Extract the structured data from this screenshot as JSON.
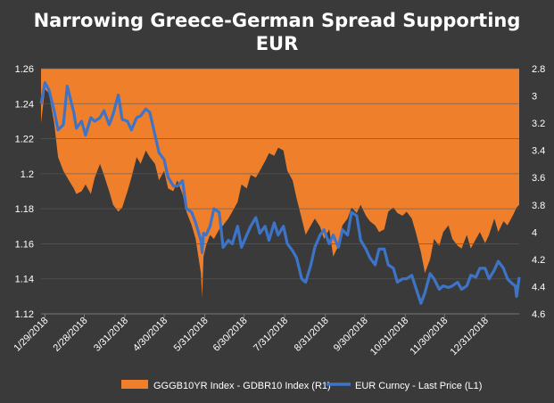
{
  "chart_data": {
    "type": "area+line",
    "title_line_1": "Narrowing Greece-German Spread Supporting",
    "title_line_2": "EUR",
    "left_axis": {
      "ticks": [
        "1.12",
        "1.14",
        "1.16",
        "1.18",
        "1.2",
        "1.22",
        "1.24",
        "1.26"
      ],
      "ylim": [
        1.12,
        1.26
      ]
    },
    "right_axis": {
      "ticks": [
        "2.8",
        "3",
        "3.2",
        "3.4",
        "3.6",
        "3.8",
        "4",
        "4.2",
        "4.4",
        "4.6"
      ],
      "ylim": [
        2.8,
        4.6
      ],
      "inverted": true
    },
    "x_ticks": [
      "1/29/2018",
      "2/28/2018",
      "3/31/2018",
      "4/30/2018",
      "5/31/2018",
      "6/30/2018",
      "7/31/2018",
      "8/31/2018",
      "9/30/2018",
      "10/31/2018",
      "11/30/2018",
      "12/31/2018"
    ],
    "x_range": [
      "2018-01-26",
      "2019-01-26"
    ],
    "grid": true,
    "legend_position": "bottom",
    "series": [
      {
        "name": "GGGB10YR Index - GDBR10 Index (R1)",
        "axis": "right",
        "color": "#f07f2c",
        "style": "area",
        "points": [
          [
            "2018-01-26",
            3.2
          ],
          [
            "2018-01-29",
            2.95
          ],
          [
            "2018-02-01",
            2.98
          ],
          [
            "2018-02-05",
            3.2
          ],
          [
            "2018-02-08",
            3.45
          ],
          [
            "2018-02-12",
            3.55
          ],
          [
            "2018-02-15",
            3.6
          ],
          [
            "2018-02-20",
            3.68
          ],
          [
            "2018-02-22",
            3.72
          ],
          [
            "2018-02-26",
            3.7
          ],
          [
            "2018-03-01",
            3.65
          ],
          [
            "2018-03-05",
            3.72
          ],
          [
            "2018-03-08",
            3.6
          ],
          [
            "2018-03-12",
            3.5
          ],
          [
            "2018-03-15",
            3.58
          ],
          [
            "2018-03-19",
            3.7
          ],
          [
            "2018-03-22",
            3.8
          ],
          [
            "2018-03-26",
            3.85
          ],
          [
            "2018-03-29",
            3.82
          ],
          [
            "2018-04-02",
            3.7
          ],
          [
            "2018-04-05",
            3.6
          ],
          [
            "2018-04-09",
            3.45
          ],
          [
            "2018-04-12",
            3.5
          ],
          [
            "2018-04-16",
            3.4
          ],
          [
            "2018-04-19",
            3.45
          ],
          [
            "2018-04-23",
            3.5
          ],
          [
            "2018-04-26",
            3.62
          ],
          [
            "2018-04-30",
            3.55
          ],
          [
            "2018-05-03",
            3.68
          ],
          [
            "2018-05-07",
            3.7
          ],
          [
            "2018-05-10",
            3.62
          ],
          [
            "2018-05-14",
            3.72
          ],
          [
            "2018-05-17",
            3.85
          ],
          [
            "2018-05-21",
            3.95
          ],
          [
            "2018-05-24",
            4.05
          ],
          [
            "2018-05-28",
            4.3
          ],
          [
            "2018-05-29",
            4.48
          ],
          [
            "2018-05-30",
            4.18
          ],
          [
            "2018-06-01",
            4.1
          ],
          [
            "2018-06-04",
            4.02
          ],
          [
            "2018-06-07",
            4.05
          ],
          [
            "2018-06-11",
            3.98
          ],
          [
            "2018-06-14",
            3.95
          ],
          [
            "2018-06-18",
            3.9
          ],
          [
            "2018-06-21",
            3.85
          ],
          [
            "2018-06-25",
            3.78
          ],
          [
            "2018-06-28",
            3.65
          ],
          [
            "2018-07-02",
            3.68
          ],
          [
            "2018-07-05",
            3.58
          ],
          [
            "2018-07-09",
            3.6
          ],
          [
            "2018-07-12",
            3.55
          ],
          [
            "2018-07-16",
            3.48
          ],
          [
            "2018-07-19",
            3.42
          ],
          [
            "2018-07-23",
            3.44
          ],
          [
            "2018-07-26",
            3.38
          ],
          [
            "2018-07-30",
            3.4
          ],
          [
            "2018-08-02",
            3.55
          ],
          [
            "2018-08-06",
            3.62
          ],
          [
            "2018-08-09",
            3.75
          ],
          [
            "2018-08-13",
            3.9
          ],
          [
            "2018-08-16",
            4.02
          ],
          [
            "2018-08-20",
            3.95
          ],
          [
            "2018-08-23",
            3.9
          ],
          [
            "2018-08-27",
            3.96
          ],
          [
            "2018-08-30",
            4.05
          ],
          [
            "2018-09-03",
            3.98
          ],
          [
            "2018-09-06",
            4.18
          ],
          [
            "2018-09-10",
            4.1
          ],
          [
            "2018-09-13",
            3.95
          ],
          [
            "2018-09-17",
            3.9
          ],
          [
            "2018-09-20",
            3.82
          ],
          [
            "2018-09-24",
            3.86
          ],
          [
            "2018-09-27",
            3.8
          ],
          [
            "2018-10-01",
            3.88
          ],
          [
            "2018-10-04",
            3.92
          ],
          [
            "2018-10-08",
            3.95
          ],
          [
            "2018-10-11",
            4.0
          ],
          [
            "2018-10-15",
            3.98
          ],
          [
            "2018-10-18",
            3.85
          ],
          [
            "2018-10-22",
            3.82
          ],
          [
            "2018-10-25",
            3.86
          ],
          [
            "2018-10-29",
            3.88
          ],
          [
            "2018-11-01",
            3.85
          ],
          [
            "2018-11-05",
            3.9
          ],
          [
            "2018-11-08",
            4.0
          ],
          [
            "2018-11-12",
            4.15
          ],
          [
            "2018-11-15",
            4.3
          ],
          [
            "2018-11-19",
            4.2
          ],
          [
            "2018-11-22",
            4.05
          ],
          [
            "2018-11-26",
            4.1
          ],
          [
            "2018-11-29",
            4.0
          ],
          [
            "2018-12-03",
            3.95
          ],
          [
            "2018-12-06",
            4.05
          ],
          [
            "2018-12-10",
            4.1
          ],
          [
            "2018-12-13",
            4.12
          ],
          [
            "2018-12-17",
            4.02
          ],
          [
            "2018-12-20",
            4.12
          ],
          [
            "2018-12-24",
            4.05
          ],
          [
            "2018-12-27",
            4.0
          ],
          [
            "2018-12-31",
            4.08
          ],
          [
            "2019-01-03",
            4.02
          ],
          [
            "2019-01-07",
            3.9
          ],
          [
            "2019-01-10",
            4.0
          ],
          [
            "2019-01-14",
            3.92
          ],
          [
            "2019-01-17",
            3.95
          ],
          [
            "2019-01-21",
            3.88
          ],
          [
            "2019-01-24",
            3.82
          ],
          [
            "2019-01-26",
            3.8
          ]
        ]
      },
      {
        "name": "EUR Curncy - Last Price (L1)",
        "axis": "left",
        "color": "#3d74c8",
        "style": "line",
        "points": [
          [
            "2018-01-26",
            1.24
          ],
          [
            "2018-01-29",
            1.252
          ],
          [
            "2018-02-01",
            1.248
          ],
          [
            "2018-02-05",
            1.236
          ],
          [
            "2018-02-08",
            1.225
          ],
          [
            "2018-02-12",
            1.228
          ],
          [
            "2018-02-15",
            1.25
          ],
          [
            "2018-02-20",
            1.235
          ],
          [
            "2018-02-22",
            1.226
          ],
          [
            "2018-02-26",
            1.23
          ],
          [
            "2018-03-01",
            1.222
          ],
          [
            "2018-03-05",
            1.232
          ],
          [
            "2018-03-08",
            1.23
          ],
          [
            "2018-03-12",
            1.232
          ],
          [
            "2018-03-15",
            1.236
          ],
          [
            "2018-03-19",
            1.228
          ],
          [
            "2018-03-22",
            1.234
          ],
          [
            "2018-03-26",
            1.245
          ],
          [
            "2018-03-29",
            1.231
          ],
          [
            "2018-04-02",
            1.23
          ],
          [
            "2018-04-05",
            1.225
          ],
          [
            "2018-04-09",
            1.232
          ],
          [
            "2018-04-12",
            1.233
          ],
          [
            "2018-04-16",
            1.237
          ],
          [
            "2018-04-19",
            1.235
          ],
          [
            "2018-04-23",
            1.222
          ],
          [
            "2018-04-26",
            1.212
          ],
          [
            "2018-04-30",
            1.208
          ],
          [
            "2018-05-03",
            1.198
          ],
          [
            "2018-05-07",
            1.193
          ],
          [
            "2018-05-10",
            1.193
          ],
          [
            "2018-05-14",
            1.196
          ],
          [
            "2018-05-17",
            1.18
          ],
          [
            "2018-05-21",
            1.178
          ],
          [
            "2018-05-24",
            1.172
          ],
          [
            "2018-05-28",
            1.162
          ],
          [
            "2018-05-29",
            1.155
          ],
          [
            "2018-05-30",
            1.166
          ],
          [
            "2018-06-01",
            1.165
          ],
          [
            "2018-06-04",
            1.17
          ],
          [
            "2018-06-07",
            1.18
          ],
          [
            "2018-06-11",
            1.178
          ],
          [
            "2018-06-14",
            1.158
          ],
          [
            "2018-06-18",
            1.162
          ],
          [
            "2018-06-21",
            1.16
          ],
          [
            "2018-06-25",
            1.17
          ],
          [
            "2018-06-28",
            1.158
          ],
          [
            "2018-07-02",
            1.165
          ],
          [
            "2018-07-05",
            1.17
          ],
          [
            "2018-07-09",
            1.175
          ],
          [
            "2018-07-12",
            1.166
          ],
          [
            "2018-07-16",
            1.17
          ],
          [
            "2018-07-19",
            1.162
          ],
          [
            "2018-07-23",
            1.172
          ],
          [
            "2018-07-26",
            1.165
          ],
          [
            "2018-07-30",
            1.17
          ],
          [
            "2018-08-02",
            1.16
          ],
          [
            "2018-08-06",
            1.156
          ],
          [
            "2018-08-09",
            1.152
          ],
          [
            "2018-08-13",
            1.14
          ],
          [
            "2018-08-16",
            1.138
          ],
          [
            "2018-08-20",
            1.148
          ],
          [
            "2018-08-23",
            1.158
          ],
          [
            "2018-08-27",
            1.165
          ],
          [
            "2018-08-30",
            1.168
          ],
          [
            "2018-09-03",
            1.16
          ],
          [
            "2018-09-06",
            1.165
          ],
          [
            "2018-09-10",
            1.158
          ],
          [
            "2018-09-13",
            1.168
          ],
          [
            "2018-09-17",
            1.165
          ],
          [
            "2018-09-20",
            1.178
          ],
          [
            "2018-09-24",
            1.176
          ],
          [
            "2018-09-27",
            1.162
          ],
          [
            "2018-10-01",
            1.157
          ],
          [
            "2018-10-04",
            1.152
          ],
          [
            "2018-10-08",
            1.148
          ],
          [
            "2018-10-11",
            1.157
          ],
          [
            "2018-10-15",
            1.157
          ],
          [
            "2018-10-18",
            1.148
          ],
          [
            "2018-10-22",
            1.146
          ],
          [
            "2018-10-25",
            1.138
          ],
          [
            "2018-10-29",
            1.14
          ],
          [
            "2018-11-01",
            1.14
          ],
          [
            "2018-11-05",
            1.142
          ],
          [
            "2018-11-08",
            1.135
          ],
          [
            "2018-11-12",
            1.126
          ],
          [
            "2018-11-15",
            1.132
          ],
          [
            "2018-11-19",
            1.143
          ],
          [
            "2018-11-22",
            1.14
          ],
          [
            "2018-11-26",
            1.134
          ],
          [
            "2018-11-29",
            1.136
          ],
          [
            "2018-12-03",
            1.135
          ],
          [
            "2018-12-06",
            1.136
          ],
          [
            "2018-12-10",
            1.138
          ],
          [
            "2018-12-13",
            1.134
          ],
          [
            "2018-12-17",
            1.136
          ],
          [
            "2018-12-20",
            1.142
          ],
          [
            "2018-12-24",
            1.141
          ],
          [
            "2018-12-27",
            1.146
          ],
          [
            "2018-12-31",
            1.146
          ],
          [
            "2019-01-03",
            1.14
          ],
          [
            "2019-01-07",
            1.145
          ],
          [
            "2019-01-10",
            1.15
          ],
          [
            "2019-01-14",
            1.146
          ],
          [
            "2019-01-17",
            1.14
          ],
          [
            "2019-01-21",
            1.137
          ],
          [
            "2019-01-23",
            1.136
          ],
          [
            "2019-01-24",
            1.13
          ],
          [
            "2019-01-26",
            1.141
          ]
        ]
      }
    ]
  },
  "colors": {
    "background": "#3a3a3a",
    "grid": "#5a5a5a",
    "axis_text": "#ffffff"
  }
}
